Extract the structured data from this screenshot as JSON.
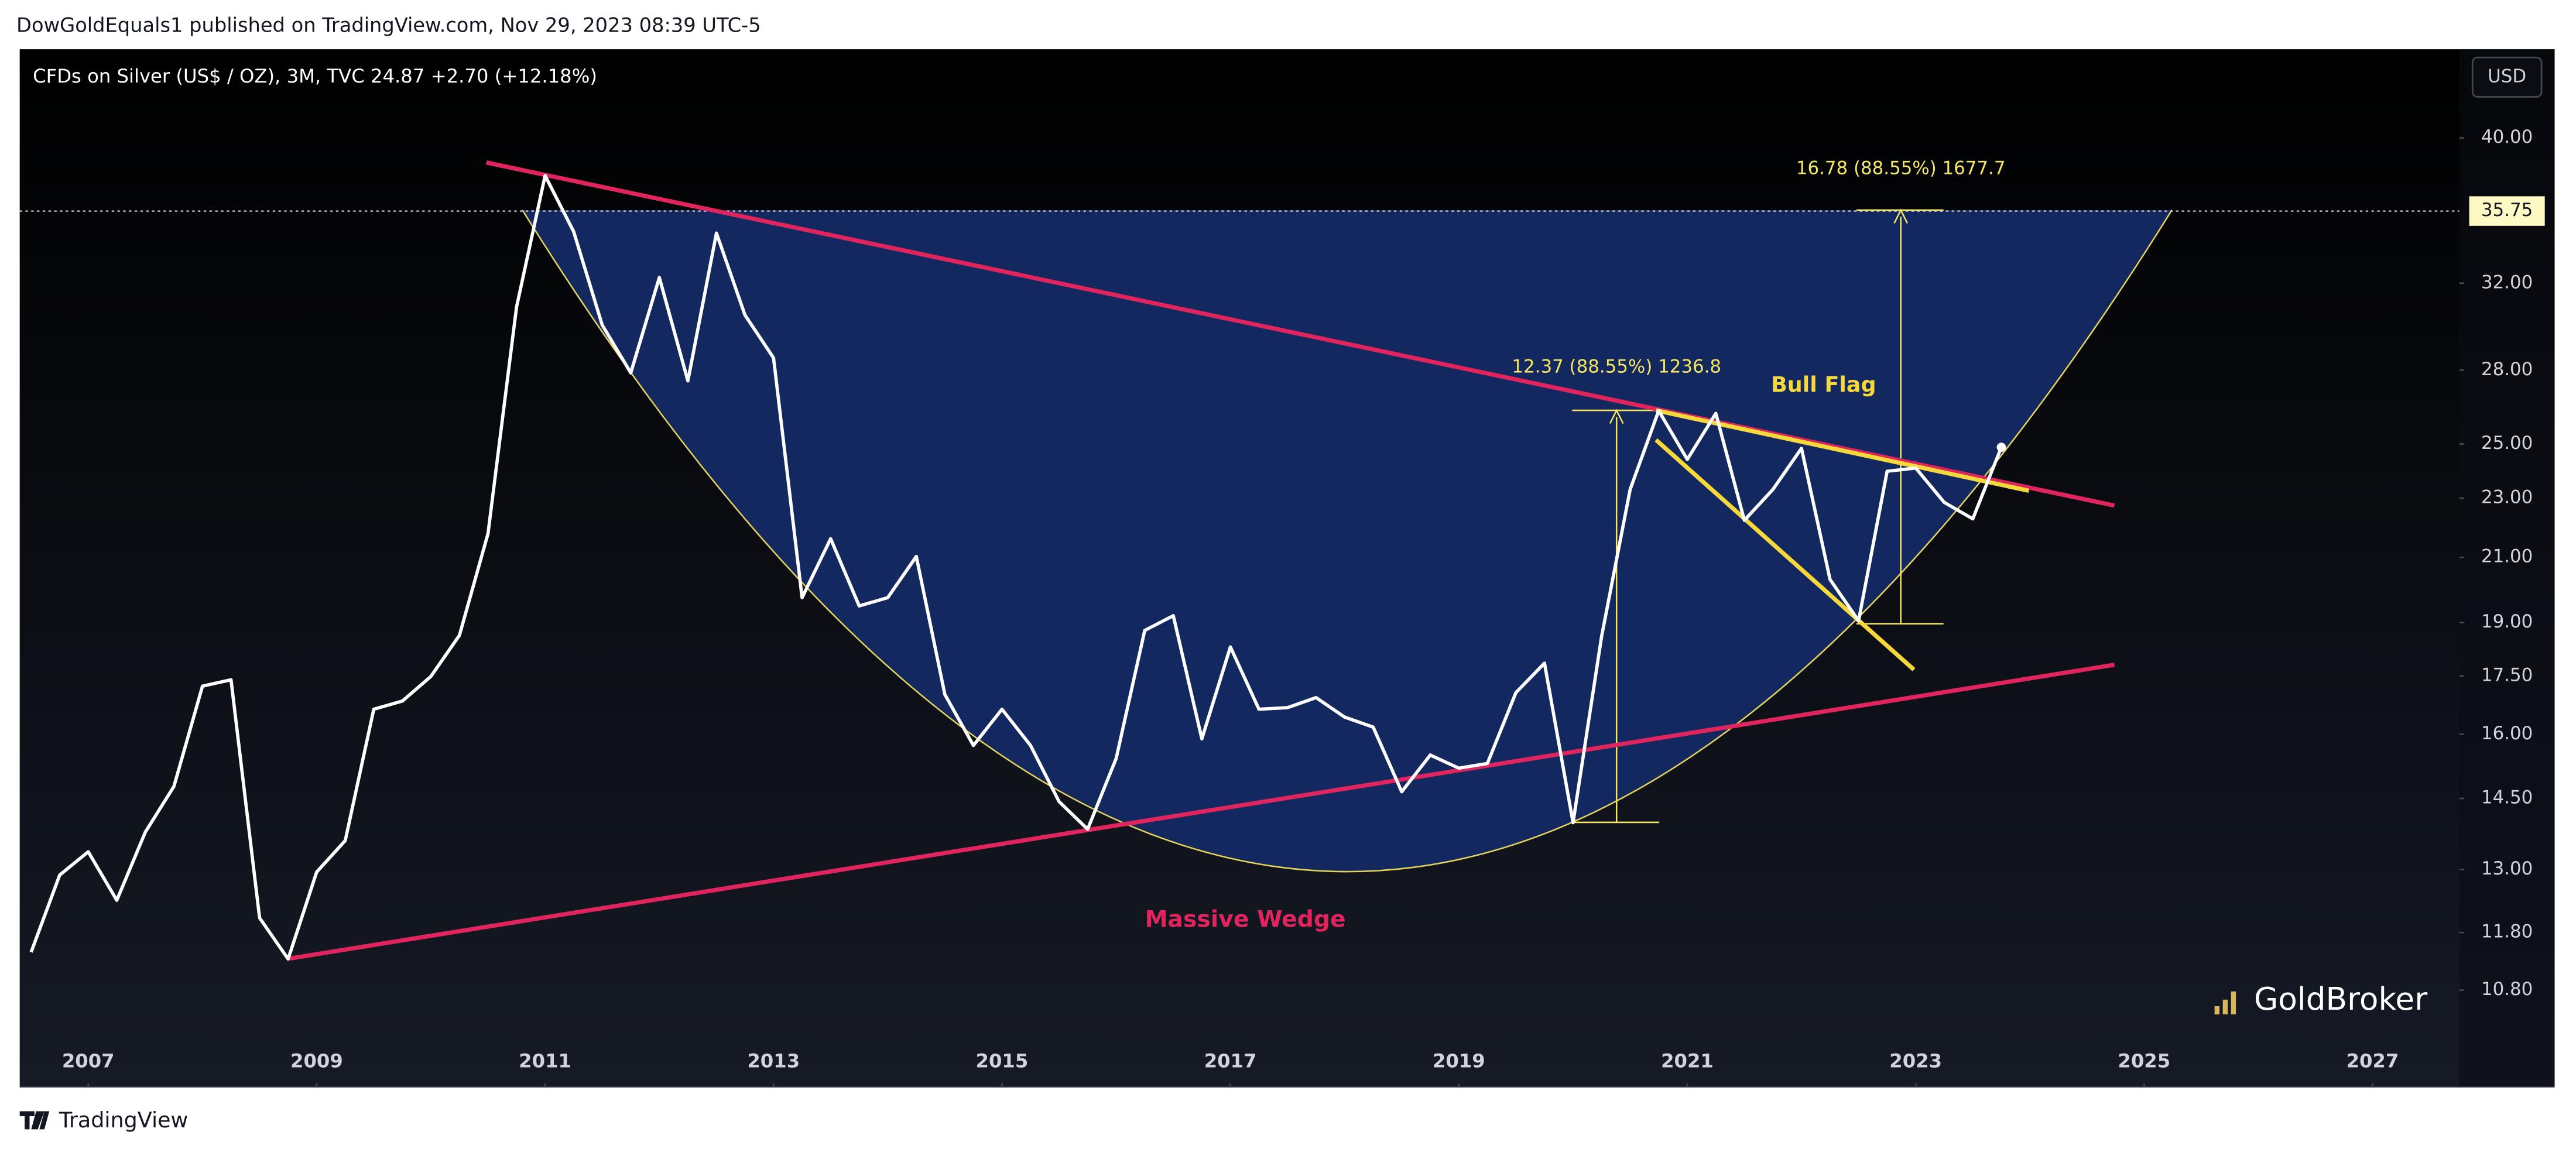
{
  "header": "DowGoldEquals1 published on TradingView.com, Nov 29, 2023 08:39 UTC-5",
  "footer": "TradingView",
  "chart_data": {
    "type": "line",
    "title": "CFDs on Silver (US$ / OZ), 3M, TVC  24.87  +2.70 (+12.18%)",
    "currency": "USD",
    "watermark": "GoldBroker",
    "color": "#ffffff",
    "ylog": true,
    "x": [
      2006.5,
      2006.75,
      2007,
      2007.25,
      2007.5,
      2007.75,
      2008,
      2008.25,
      2008.5,
      2008.75,
      2009,
      2009.25,
      2009.5,
      2009.75,
      2010,
      2010.25,
      2010.5,
      2010.75,
      2011,
      2011.25,
      2011.5,
      2011.75,
      2012,
      2012.25,
      2012.5,
      2012.75,
      2013,
      2013.25,
      2013.5,
      2013.75,
      2014,
      2014.25,
      2014.5,
      2014.75,
      2015,
      2015.25,
      2015.5,
      2015.75,
      2016,
      2016.25,
      2016.5,
      2016.75,
      2017,
      2017.25,
      2017.5,
      2017.75,
      2018,
      2018.25,
      2018.5,
      2018.75,
      2019,
      2019.25,
      2019.5,
      2019.75,
      2020,
      2020.25,
      2020.5,
      2020.75,
      2021,
      2021.25,
      2021.5,
      2021.75,
      2022,
      2022.25,
      2022.5,
      2022.75,
      2023,
      2023.25,
      2023.5,
      2023.75
    ],
    "values": [
      11.45,
      12.89,
      13.36,
      12.4,
      13.77,
      14.77,
      17.23,
      17.4,
      12.07,
      11.33,
      12.95,
      13.59,
      16.63,
      16.84,
      17.49,
      18.63,
      21.78,
      30.85,
      37.75,
      34.64,
      30.01,
      27.88,
      32.28,
      27.54,
      34.56,
      30.47,
      28.53,
      19.74,
      21.61,
      19.49,
      19.74,
      21.03,
      17.01,
      15.73,
      16.63,
      15.73,
      14.43,
      13.83,
      15.42,
      18.77,
      19.2,
      15.89,
      18.3,
      16.63,
      16.67,
      16.93,
      16.43,
      16.18,
      14.65,
      15.5,
      15.19,
      15.3,
      17.06,
      17.85,
      13.97,
      18.6,
      23.31,
      26.31,
      24.41,
      26.2,
      22.23,
      23.31,
      24.83,
      20.3,
      19.05,
      23.97,
      24.09,
      22.85,
      22.28,
      24.87
    ],
    "xlim": [
      2006.4,
      2027.76
    ],
    "xticks": [
      2007,
      2009,
      2011,
      2013,
      2015,
      2017,
      2019,
      2021,
      2023,
      2025,
      2027
    ],
    "ylim": [
      9.36,
      45.84
    ],
    "yticks": [
      {
        "value": 10.8,
        "label": "10.80"
      },
      {
        "value": 11.8,
        "label": "11.80"
      },
      {
        "value": 13,
        "label": "13.00"
      },
      {
        "value": 14.5,
        "label": "14.50"
      },
      {
        "value": 16,
        "label": "16.00"
      },
      {
        "value": 17.5,
        "label": "17.50"
      },
      {
        "value": 19,
        "label": "19.00"
      },
      {
        "value": 21,
        "label": "21.00"
      },
      {
        "value": 23,
        "label": "23.00"
      },
      {
        "value": 25,
        "label": "25.00"
      },
      {
        "value": 28,
        "label": "28.00"
      },
      {
        "value": 32,
        "label": "32.00"
      },
      {
        "value": 40,
        "label": "40.00"
      }
    ],
    "price_line": 35.75,
    "annotations": [
      "Massive Wedge",
      "Bull Flag",
      "12.37 (88.55%) 1236.8",
      "16.78 (88.55%) 1677.7"
    ]
  }
}
